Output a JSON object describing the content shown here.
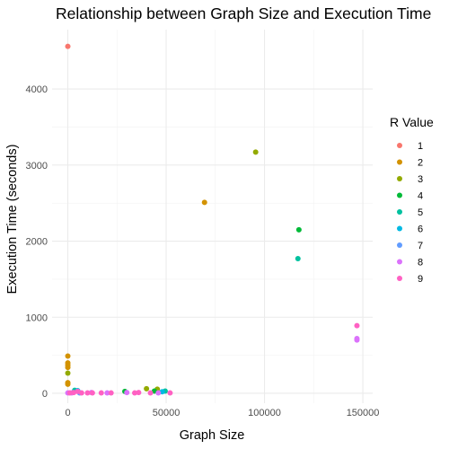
{
  "chart_data": {
    "type": "scatter",
    "title": "Relationship between Graph Size and Execution Time",
    "xlabel": "Graph Size",
    "ylabel": "Execution Time (seconds)",
    "xlim": [
      -8000,
      155000
    ],
    "ylim": [
      -130,
      4780
    ],
    "x_ticks": [
      0,
      50000,
      100000,
      150000
    ],
    "x_tick_labels": [
      "0",
      "50000",
      "100000",
      "150000"
    ],
    "y_ticks": [
      0,
      1000,
      2000,
      3000,
      4000
    ],
    "y_tick_labels": [
      "0",
      "1000",
      "2000",
      "3000",
      "4000"
    ],
    "grid": true,
    "legend": {
      "title": "R Value",
      "placement": "right",
      "entries": [
        "1",
        "2",
        "3",
        "4",
        "5",
        "6",
        "7",
        "8",
        "9"
      ]
    },
    "series": [
      {
        "name": "1",
        "color": "#F8766D",
        "points": [
          [
            0,
            4560
          ]
        ]
      },
      {
        "name": "2",
        "color": "#D39200",
        "points": [
          [
            0,
            490
          ],
          [
            0,
            400
          ],
          [
            0,
            370
          ],
          [
            0,
            340
          ],
          [
            0,
            140
          ],
          [
            0,
            120
          ],
          [
            69500,
            2510
          ]
        ]
      },
      {
        "name": "3",
        "color": "#93AA00",
        "points": [
          [
            0,
            265
          ],
          [
            40000,
            60
          ],
          [
            45500,
            55
          ],
          [
            95500,
            3170
          ]
        ]
      },
      {
        "name": "4",
        "color": "#00BA38",
        "points": [
          [
            29000,
            25
          ],
          [
            44000,
            30
          ],
          [
            117500,
            2150
          ]
        ]
      },
      {
        "name": "5",
        "color": "#00C19F",
        "points": [
          [
            3500,
            40
          ],
          [
            49500,
            30
          ],
          [
            117000,
            1770
          ]
        ]
      },
      {
        "name": "6",
        "color": "#00B9E3",
        "points": [
          [
            5000,
            35
          ],
          [
            48000,
            20
          ]
        ]
      },
      {
        "name": "7",
        "color": "#619CFF",
        "points": [
          [
            6000,
            5
          ]
        ]
      },
      {
        "name": "8",
        "color": "#DB72FB",
        "points": [
          [
            0,
            5
          ],
          [
            2000,
            5
          ],
          [
            12000,
            10
          ],
          [
            20000,
            5
          ],
          [
            30000,
            10
          ],
          [
            46000,
            5
          ],
          [
            147000,
            700
          ],
          [
            147000,
            720
          ]
        ]
      },
      {
        "name": "9",
        "color": "#FF61C3",
        "points": [
          [
            1000,
            5
          ],
          [
            3000,
            10
          ],
          [
            5000,
            25
          ],
          [
            7000,
            5
          ],
          [
            10000,
            5
          ],
          [
            12500,
            5
          ],
          [
            17000,
            5
          ],
          [
            22000,
            5
          ],
          [
            34000,
            5
          ],
          [
            36000,
            10
          ],
          [
            42000,
            5
          ],
          [
            52000,
            5
          ],
          [
            147000,
            890
          ]
        ]
      }
    ]
  }
}
